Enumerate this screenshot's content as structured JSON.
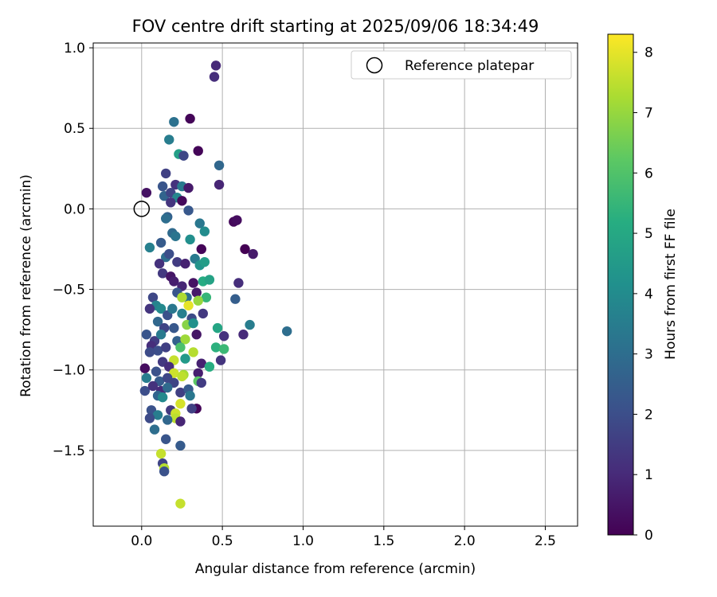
{
  "chart_data": {
    "type": "scatter",
    "title": "FOV centre drift starting at 2025/09/06 18:34:49",
    "xlabel": "Angular distance from reference (arcmin)",
    "ylabel": "Rotation from reference (arcmin)",
    "xlim": [
      -0.3,
      2.7
    ],
    "ylim": [
      -1.97,
      1.03
    ],
    "xticks": [
      "0.0",
      "0.5",
      "1.0",
      "1.5",
      "2.0",
      "2.5"
    ],
    "yticks": [
      "1.0",
      "0.5",
      "0.0",
      "−0.5",
      "−1.0",
      "−1.5"
    ],
    "grid": true,
    "legend": {
      "placement": "top-right",
      "entries": [
        "Reference platepar"
      ]
    },
    "reference_point": {
      "x": 0.0,
      "y": 0.0
    },
    "colorbar": {
      "label": "Hours from first FF file",
      "range": [
        0,
        8.3
      ],
      "ticks": [
        "0",
        "1",
        "2",
        "3",
        "4",
        "5",
        "6",
        "7",
        "8"
      ],
      "colormap": "viridis",
      "stops": [
        "#440154",
        "#472c7a",
        "#3b518b",
        "#2c718e",
        "#21908d",
        "#27ad81",
        "#5cc863",
        "#aadc32",
        "#fde725"
      ]
    },
    "points": [
      {
        "x": 0.46,
        "y": 0.89,
        "c": 1.0
      },
      {
        "x": 0.45,
        "y": 0.82,
        "c": 1.1
      },
      {
        "x": 0.3,
        "y": 0.56,
        "c": 0.1
      },
      {
        "x": 0.2,
        "y": 0.54,
        "c": 3.1
      },
      {
        "x": 0.17,
        "y": 0.43,
        "c": 3.5
      },
      {
        "x": 0.35,
        "y": 0.36,
        "c": 0.1
      },
      {
        "x": 0.23,
        "y": 0.34,
        "c": 4.7
      },
      {
        "x": 0.26,
        "y": 0.33,
        "c": 1.8
      },
      {
        "x": 0.48,
        "y": 0.27,
        "c": 2.8
      },
      {
        "x": 0.15,
        "y": 0.22,
        "c": 1.6
      },
      {
        "x": 0.21,
        "y": 0.15,
        "c": 1.2
      },
      {
        "x": 0.48,
        "y": 0.15,
        "c": 0.9
      },
      {
        "x": 0.13,
        "y": 0.14,
        "c": 2.2
      },
      {
        "x": 0.25,
        "y": 0.14,
        "c": 3.4
      },
      {
        "x": 0.29,
        "y": 0.13,
        "c": 0.6
      },
      {
        "x": 0.03,
        "y": 0.1,
        "c": 0.4
      },
      {
        "x": 0.14,
        "y": 0.08,
        "c": 2.7
      },
      {
        "x": 0.18,
        "y": 0.1,
        "c": 1.7
      },
      {
        "x": 0.22,
        "y": 0.07,
        "c": 3.8
      },
      {
        "x": 0.25,
        "y": 0.05,
        "c": 0.2
      },
      {
        "x": 0.18,
        "y": 0.04,
        "c": 1.3
      },
      {
        "x": 0.29,
        "y": -0.01,
        "c": 2.3
      },
      {
        "x": 0.16,
        "y": -0.05,
        "c": 2.6
      },
      {
        "x": 0.15,
        "y": -0.06,
        "c": 3.0
      },
      {
        "x": 0.57,
        "y": -0.08,
        "c": 0.2
      },
      {
        "x": 0.59,
        "y": -0.07,
        "c": 0.3
      },
      {
        "x": 0.36,
        "y": -0.09,
        "c": 3.3
      },
      {
        "x": 0.39,
        "y": -0.14,
        "c": 4.0
      },
      {
        "x": 0.19,
        "y": -0.15,
        "c": 2.9
      },
      {
        "x": 0.21,
        "y": -0.17,
        "c": 3.2
      },
      {
        "x": 0.12,
        "y": -0.21,
        "c": 2.4
      },
      {
        "x": 0.05,
        "y": -0.24,
        "c": 3.6
      },
      {
        "x": 0.64,
        "y": -0.25,
        "c": 0.0
      },
      {
        "x": 0.69,
        "y": -0.28,
        "c": 0.6
      },
      {
        "x": 0.3,
        "y": -0.19,
        "c": 4.1
      },
      {
        "x": 0.37,
        "y": -0.25,
        "c": 0.1
      },
      {
        "x": 0.15,
        "y": -0.3,
        "c": 3.0
      },
      {
        "x": 0.17,
        "y": -0.28,
        "c": 2.0
      },
      {
        "x": 0.22,
        "y": -0.33,
        "c": 1.5
      },
      {
        "x": 0.27,
        "y": -0.34,
        "c": 0.8
      },
      {
        "x": 0.33,
        "y": -0.31,
        "c": 3.4
      },
      {
        "x": 0.36,
        "y": -0.35,
        "c": 4.3
      },
      {
        "x": 0.39,
        "y": -0.33,
        "c": 4.6
      },
      {
        "x": 0.11,
        "y": -0.34,
        "c": 1.2
      },
      {
        "x": 0.13,
        "y": -0.4,
        "c": 1.4
      },
      {
        "x": 0.18,
        "y": -0.42,
        "c": 0.5
      },
      {
        "x": 0.2,
        "y": -0.45,
        "c": 0.7
      },
      {
        "x": 0.25,
        "y": -0.48,
        "c": 0.9
      },
      {
        "x": 0.32,
        "y": -0.46,
        "c": 0.4
      },
      {
        "x": 0.38,
        "y": -0.45,
        "c": 5.1
      },
      {
        "x": 0.42,
        "y": -0.44,
        "c": 4.8
      },
      {
        "x": 0.6,
        "y": -0.46,
        "c": 1.1
      },
      {
        "x": 0.22,
        "y": -0.52,
        "c": 2.2
      },
      {
        "x": 0.28,
        "y": -0.55,
        "c": 3.1
      },
      {
        "x": 0.34,
        "y": -0.52,
        "c": 0.6
      },
      {
        "x": 0.4,
        "y": -0.55,
        "c": 5.5
      },
      {
        "x": 0.58,
        "y": -0.56,
        "c": 2.5
      },
      {
        "x": 0.07,
        "y": -0.55,
        "c": 1.8
      },
      {
        "x": 0.09,
        "y": -0.6,
        "c": 3.7
      },
      {
        "x": 0.12,
        "y": -0.62,
        "c": 3.9
      },
      {
        "x": 0.25,
        "y": -0.55,
        "c": 7.3
      },
      {
        "x": 0.29,
        "y": -0.6,
        "c": 8.0
      },
      {
        "x": 0.35,
        "y": -0.57,
        "c": 7.0
      },
      {
        "x": 0.05,
        "y": -0.62,
        "c": 1.3
      },
      {
        "x": 0.16,
        "y": -0.66,
        "c": 2.1
      },
      {
        "x": 0.19,
        "y": -0.62,
        "c": 3.3
      },
      {
        "x": 0.25,
        "y": -0.65,
        "c": 3.6
      },
      {
        "x": 0.31,
        "y": -0.68,
        "c": 1.9
      },
      {
        "x": 0.38,
        "y": -0.65,
        "c": 1.4
      },
      {
        "x": 0.1,
        "y": -0.7,
        "c": 2.8
      },
      {
        "x": 0.14,
        "y": -0.74,
        "c": 1.7
      },
      {
        "x": 0.2,
        "y": -0.74,
        "c": 2.3
      },
      {
        "x": 0.28,
        "y": -0.72,
        "c": 6.8
      },
      {
        "x": 0.32,
        "y": -0.71,
        "c": 4.2
      },
      {
        "x": 0.47,
        "y": -0.74,
        "c": 4.9
      },
      {
        "x": 0.67,
        "y": -0.72,
        "c": 3.5
      },
      {
        "x": 0.9,
        "y": -0.76,
        "c": 3.0
      },
      {
        "x": 0.63,
        "y": -0.78,
        "c": 1.0
      },
      {
        "x": 0.03,
        "y": -0.78,
        "c": 2.2
      },
      {
        "x": 0.08,
        "y": -0.82,
        "c": 1.5
      },
      {
        "x": 0.12,
        "y": -0.78,
        "c": 3.4
      },
      {
        "x": 0.22,
        "y": -0.82,
        "c": 2.6
      },
      {
        "x": 0.27,
        "y": -0.81,
        "c": 7.1
      },
      {
        "x": 0.34,
        "y": -0.78,
        "c": 0.5
      },
      {
        "x": 0.51,
        "y": -0.79,
        "c": 1.2
      },
      {
        "x": 0.06,
        "y": -0.85,
        "c": 1.1
      },
      {
        "x": 0.1,
        "y": -0.88,
        "c": 2.0
      },
      {
        "x": 0.15,
        "y": -0.86,
        "c": 1.6
      },
      {
        "x": 0.24,
        "y": -0.86,
        "c": 5.9
      },
      {
        "x": 0.32,
        "y": -0.89,
        "c": 7.4
      },
      {
        "x": 0.46,
        "y": -0.86,
        "c": 5.3
      },
      {
        "x": 0.51,
        "y": -0.87,
        "c": 5.6
      },
      {
        "x": 0.05,
        "y": -0.89,
        "c": 1.9
      },
      {
        "x": 0.13,
        "y": -0.95,
        "c": 1.4
      },
      {
        "x": 0.2,
        "y": -0.94,
        "c": 7.6
      },
      {
        "x": 0.27,
        "y": -0.93,
        "c": 4.5
      },
      {
        "x": 0.37,
        "y": -0.96,
        "c": 0.8
      },
      {
        "x": 0.42,
        "y": -0.98,
        "c": 5.2
      },
      {
        "x": 0.49,
        "y": -0.94,
        "c": 1.3
      },
      {
        "x": 0.02,
        "y": -0.99,
        "c": 0.3
      },
      {
        "x": 0.09,
        "y": -1.01,
        "c": 2.1
      },
      {
        "x": 0.17,
        "y": -0.98,
        "c": 1.1
      },
      {
        "x": 0.2,
        "y": -1.02,
        "c": 7.7
      },
      {
        "x": 0.26,
        "y": -1.03,
        "c": 7.2
      },
      {
        "x": 0.35,
        "y": -1.02,
        "c": 0.7
      },
      {
        "x": 0.03,
        "y": -1.05,
        "c": 3.5
      },
      {
        "x": 0.11,
        "y": -1.07,
        "c": 2.4
      },
      {
        "x": 0.16,
        "y": -1.05,
        "c": 1.8
      },
      {
        "x": 0.2,
        "y": -1.08,
        "c": 1.7
      },
      {
        "x": 0.25,
        "y": -1.04,
        "c": 7.5
      },
      {
        "x": 0.35,
        "y": -1.07,
        "c": 6.2
      },
      {
        "x": 0.37,
        "y": -1.08,
        "c": 1.5
      },
      {
        "x": 0.02,
        "y": -1.13,
        "c": 2.0
      },
      {
        "x": 0.07,
        "y": -1.1,
        "c": 1.2
      },
      {
        "x": 0.12,
        "y": -1.13,
        "c": 1.0
      },
      {
        "x": 0.16,
        "y": -1.11,
        "c": 2.9
      },
      {
        "x": 0.24,
        "y": -1.14,
        "c": 1.6
      },
      {
        "x": 0.29,
        "y": -1.12,
        "c": 2.4
      },
      {
        "x": 0.3,
        "y": -1.16,
        "c": 3.3
      },
      {
        "x": 0.1,
        "y": -1.16,
        "c": 2.7
      },
      {
        "x": 0.13,
        "y": -1.17,
        "c": 3.9
      },
      {
        "x": 0.24,
        "y": -1.21,
        "c": 7.8
      },
      {
        "x": 0.34,
        "y": -1.24,
        "c": 0.1
      },
      {
        "x": 0.31,
        "y": -1.24,
        "c": 1.6
      },
      {
        "x": 0.06,
        "y": -1.25,
        "c": 2.1
      },
      {
        "x": 0.18,
        "y": -1.25,
        "c": 1.4
      },
      {
        "x": 0.21,
        "y": -1.27,
        "c": 7.7
      },
      {
        "x": 0.21,
        "y": -1.3,
        "c": 7.5
      },
      {
        "x": 0.1,
        "y": -1.28,
        "c": 3.5
      },
      {
        "x": 0.05,
        "y": -1.3,
        "c": 1.9
      },
      {
        "x": 0.16,
        "y": -1.31,
        "c": 2.8
      },
      {
        "x": 0.24,
        "y": -1.32,
        "c": 0.9
      },
      {
        "x": 0.08,
        "y": -1.37,
        "c": 3.0
      },
      {
        "x": 0.15,
        "y": -1.43,
        "c": 2.2
      },
      {
        "x": 0.24,
        "y": -1.47,
        "c": 2.4
      },
      {
        "x": 0.12,
        "y": -1.52,
        "c": 7.6
      },
      {
        "x": 0.13,
        "y": -1.58,
        "c": 1.7
      },
      {
        "x": 0.14,
        "y": -1.61,
        "c": 7.4
      },
      {
        "x": 0.14,
        "y": -1.63,
        "c": 2.1
      },
      {
        "x": 0.24,
        "y": -1.83,
        "c": 7.6
      }
    ]
  }
}
